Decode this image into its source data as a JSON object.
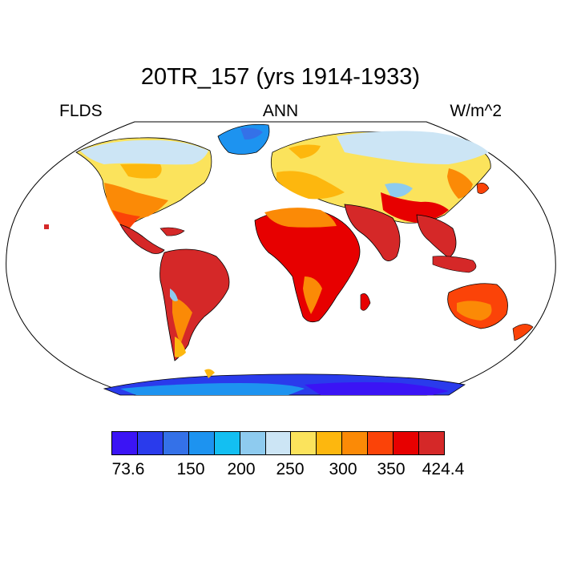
{
  "title": "20TR_157 (yrs 1914-1933)",
  "left_label": "FLDS",
  "center_label": "ANN",
  "right_label": "W/m^2",
  "colorbar": {
    "colors": [
      "#3b14f5",
      "#2a3bec",
      "#3471e8",
      "#1d93f0",
      "#13bff2",
      "#8ecbef",
      "#cce5f5",
      "#fbe35c",
      "#fdb70e",
      "#fb8a06",
      "#fb4308",
      "#e70000",
      "#d52828"
    ],
    "labels": [
      "73.6",
      "150",
      "200",
      "250",
      "300",
      "350",
      "424.4"
    ]
  },
  "map": {
    "projection": "robinson",
    "ocean_fill": "#ffffff"
  }
}
